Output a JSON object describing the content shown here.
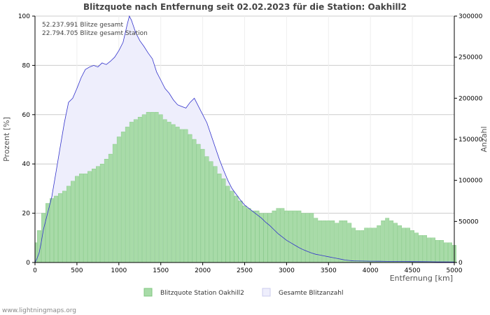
{
  "colors": {
    "green_fill": "#a8dba8",
    "green_stroke": "#7fc77f",
    "lavender_fill": "#eeeefc",
    "blue_line": "#3333cc",
    "grid": "#cccccc",
    "axis": "#000000"
  },
  "chart_data": {
    "type": "bar",
    "title": "Blitzquote nach Entfernung seit 02.02.2023 für die Station: Oakhill2",
    "xlabel": "Entfernung   [km]",
    "ylabel_left": "Prozent   [%]",
    "ylabel_right": "Anzahl",
    "xlim": [
      0,
      5000
    ],
    "ylim_left": [
      0,
      100
    ],
    "ylim_right": [
      0,
      300000
    ],
    "x_ticks": [
      "0",
      "500",
      "1000",
      "1500",
      "2000",
      "2500",
      "3000",
      "3500",
      "4000",
      "4500",
      "5000"
    ],
    "y_left_ticks": [
      "0",
      "20",
      "40",
      "60",
      "80",
      "100"
    ],
    "y_right_ticks": [
      "0",
      "50000",
      "100000",
      "150000",
      "200000",
      "250000",
      "300000"
    ],
    "annotations": [
      "52.237.991 Blitze gesamt",
      "22.794.705 Blitze gesamt Station"
    ],
    "legend": [
      "Blitzquote Station Oakhill2",
      "Gesamte Blitzanzahl"
    ],
    "series": [
      {
        "name": "Blitzquote Station Oakhill2",
        "kind": "bar",
        "axis": "left",
        "x": [
          25,
          50,
          100,
          150,
          200,
          250,
          300,
          350,
          400,
          450,
          500,
          550,
          600,
          650,
          700,
          750,
          800,
          850,
          900,
          950,
          1000,
          1050,
          1100,
          1150,
          1200,
          1250,
          1300,
          1350,
          1400,
          1450,
          1500,
          1550,
          1600,
          1650,
          1700,
          1750,
          1800,
          1850,
          1900,
          1950,
          2000,
          2050,
          2100,
          2150,
          2200,
          2250,
          2300,
          2350,
          2400,
          2450,
          2500,
          2550,
          2600,
          2650,
          2700,
          2750,
          2800,
          2850,
          2900,
          2950,
          3000,
          3050,
          3100,
          3150,
          3200,
          3250,
          3300,
          3350,
          3400,
          3450,
          3500,
          3550,
          3600,
          3650,
          3700,
          3750,
          3800,
          3850,
          3900,
          3950,
          4000,
          4050,
          4100,
          4150,
          4200,
          4250,
          4300,
          4350,
          4400,
          4450,
          4500,
          4550,
          4600,
          4650,
          4700,
          4750,
          4800,
          4850,
          4900,
          4950,
          5000
        ],
        "values": [
          8,
          13,
          20,
          24,
          26,
          27,
          28,
          29,
          31,
          33,
          35,
          36,
          36,
          37,
          38,
          39,
          40,
          42,
          44,
          48,
          51,
          53,
          55,
          57,
          58,
          59,
          60,
          61,
          61,
          61,
          60,
          58,
          57,
          56,
          55,
          54,
          54,
          52,
          50,
          48,
          46,
          43,
          41,
          39,
          36,
          34,
          31,
          29,
          27,
          25,
          23,
          22,
          21,
          21,
          20,
          20,
          20,
          21,
          22,
          22,
          21,
          21,
          21,
          21,
          20,
          20,
          20,
          18,
          17,
          17,
          17,
          17,
          16,
          17,
          17,
          16,
          14,
          13,
          13,
          14,
          14,
          14,
          15,
          17,
          18,
          17,
          16,
          15,
          14,
          14,
          13,
          12,
          11,
          11,
          10,
          10,
          9,
          9,
          8,
          8,
          7
        ]
      },
      {
        "name": "Gesamte Blitzanzahl",
        "kind": "area",
        "axis": "right",
        "x": [
          0,
          25,
          50,
          75,
          100,
          150,
          200,
          250,
          300,
          350,
          400,
          450,
          500,
          550,
          600,
          650,
          700,
          750,
          800,
          850,
          900,
          950,
          1000,
          1050,
          1100,
          1125,
          1150,
          1200,
          1250,
          1300,
          1350,
          1400,
          1450,
          1500,
          1550,
          1600,
          1650,
          1700,
          1750,
          1800,
          1850,
          1900,
          1950,
          2000,
          2050,
          2100,
          2150,
          2200,
          2250,
          2300,
          2350,
          2400,
          2450,
          2500,
          2550,
          2600,
          2650,
          2700,
          2750,
          2800,
          2850,
          2900,
          2950,
          3000,
          3050,
          3100,
          3150,
          3200,
          3250,
          3300,
          3350,
          3400,
          3450,
          3500,
          3550,
          3600,
          3650,
          3700,
          3750,
          3800,
          3900,
          4000,
          4100,
          4200,
          4300,
          4400,
          4500,
          4600,
          4700,
          4800,
          4900,
          5000
        ],
        "values": [
          0,
          5000,
          12000,
          25000,
          40000,
          60000,
          80000,
          110000,
          140000,
          170000,
          195000,
          200000,
          212000,
          225000,
          235000,
          238000,
          240000,
          238000,
          243000,
          241000,
          245000,
          250000,
          258000,
          268000,
          290000,
          300000,
          295000,
          280000,
          270000,
          263000,
          255000,
          248000,
          232000,
          222000,
          212000,
          206000,
          198000,
          192000,
          190000,
          188000,
          195000,
          200000,
          190000,
          180000,
          170000,
          155000,
          140000,
          125000,
          112000,
          100000,
          90000,
          83000,
          76000,
          70000,
          66000,
          62000,
          58000,
          54000,
          49000,
          45000,
          40000,
          35000,
          31000,
          27000,
          24000,
          21000,
          18000,
          15500,
          13500,
          11500,
          10000,
          9000,
          8000,
          7000,
          6000,
          5000,
          4000,
          3000,
          2500,
          2000,
          1800,
          1600,
          1500,
          1400,
          1300,
          1200,
          1100,
          1000,
          900,
          800,
          700,
          600
        ]
      }
    ]
  },
  "credit": "www.lightningmaps.org"
}
